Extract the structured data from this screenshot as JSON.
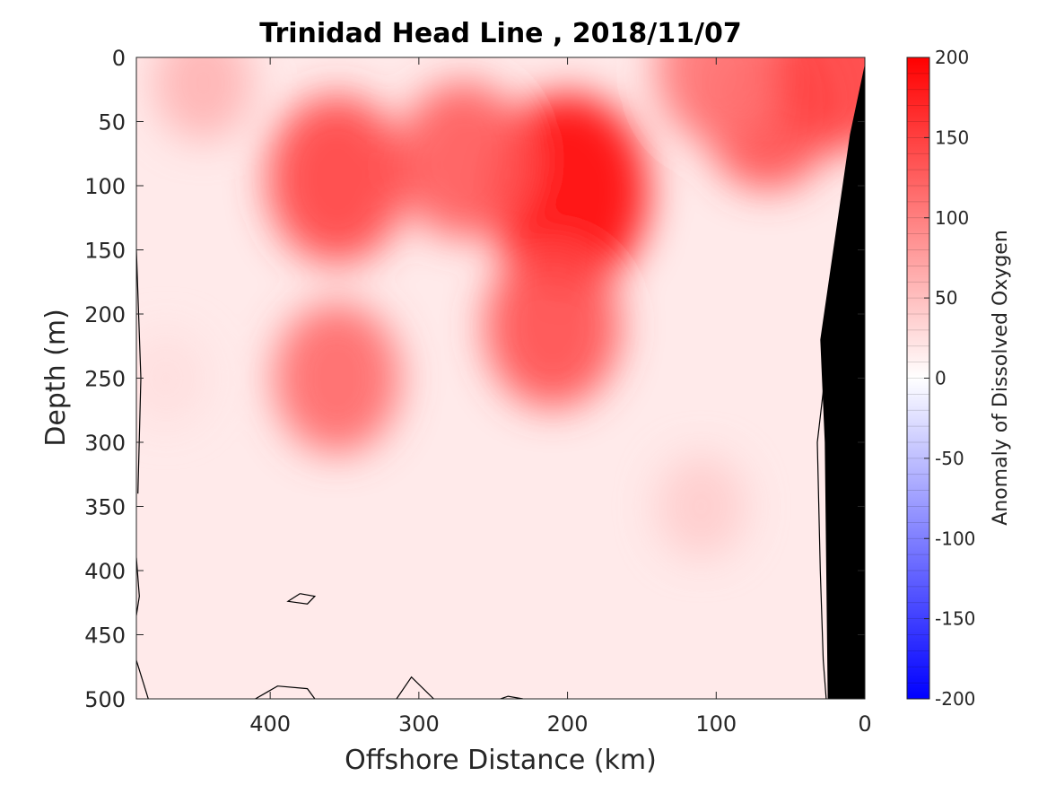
{
  "chart_data": {
    "type": "heatmap",
    "title": "Trinidad Head Line , 2018/11/07",
    "xlabel": "Offshore Distance (km)",
    "ylabel": "Depth (m)",
    "colorbar_label": "Anomaly of Dissolved Oxygen",
    "x_reversed": true,
    "y_reversed": true,
    "xlim": [
      0,
      490
    ],
    "ylim": [
      0,
      500
    ],
    "xticks": [
      400,
      300,
      200,
      100,
      0
    ],
    "yticks": [
      0,
      50,
      100,
      150,
      200,
      250,
      300,
      350,
      400,
      450,
      500
    ],
    "colorbar_range": [
      -200,
      200
    ],
    "colorbar_ticks": [
      200,
      150,
      100,
      50,
      0,
      -50,
      -100,
      -150,
      -200
    ],
    "colormap": {
      "negative": "#0000ff",
      "zero": "#ffffff",
      "positive": "#ff0000"
    },
    "zero_contour_color": "#000000",
    "seafloor_color": "#000000",
    "grid": false,
    "anomaly_hotspots": [
      {
        "x": 200,
        "depth": 105,
        "value": 200
      },
      {
        "x": 210,
        "depth": 210,
        "value": 140
      },
      {
        "x": 355,
        "depth": 95,
        "value": 150
      },
      {
        "x": 355,
        "depth": 250,
        "value": 120
      },
      {
        "x": 65,
        "depth": 40,
        "value": 140
      },
      {
        "x": 15,
        "depth": 8,
        "value": 150
      },
      {
        "x": 270,
        "depth": 80,
        "value": 130
      },
      {
        "x": 100,
        "depth": 10,
        "value": 110
      },
      {
        "x": 445,
        "depth": 20,
        "value": 60
      },
      {
        "x": 470,
        "depth": 250,
        "value": 25
      },
      {
        "x": 110,
        "depth": 350,
        "value": 40
      }
    ]
  }
}
